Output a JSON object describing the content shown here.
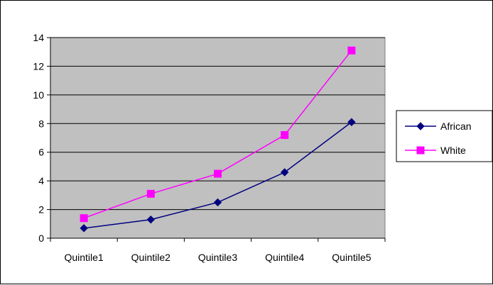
{
  "chart_data": {
    "type": "line",
    "categories": [
      "Quintile1",
      "Quintile2",
      "Quintile3",
      "Quintile4",
      "Quintile5"
    ],
    "series": [
      {
        "name": "African",
        "values": [
          0.7,
          1.3,
          2.5,
          4.6,
          8.1
        ],
        "color": "#000080",
        "marker": "diamond"
      },
      {
        "name": "White",
        "values": [
          1.4,
          3.1,
          4.5,
          7.2,
          13.1
        ],
        "color": "#ff00ff",
        "marker": "square"
      }
    ],
    "yticks": [
      "0",
      "2",
      "4",
      "6",
      "8",
      "10",
      "12",
      "14"
    ],
    "ylim": [
      0,
      14
    ],
    "grid": true,
    "plot_background": "#c0c0c0",
    "legend_position": "right"
  }
}
